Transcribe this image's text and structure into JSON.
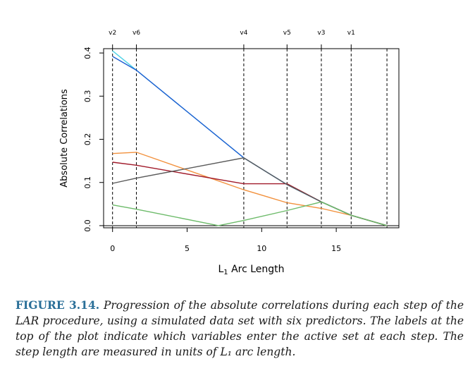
{
  "chart_data": {
    "type": "line",
    "xlabel_prefix": "L",
    "xlabel_sub": "1",
    "xlabel_suffix": " Arc Length",
    "ylabel": "Absolute Correlations",
    "xlim": [
      -0.6,
      19.2
    ],
    "ylim": [
      -0.005,
      0.41
    ],
    "xticks": [
      0,
      5,
      10,
      15
    ],
    "xtick_labels": [
      "0",
      "5",
      "10",
      "15"
    ],
    "yticks": [
      0.0,
      0.1,
      0.2,
      0.3,
      0.4
    ],
    "ytick_labels": [
      "0.0",
      "0.1",
      "0.2",
      "0.3",
      "0.4"
    ],
    "steps": [
      0,
      1.6,
      8.8,
      11.7,
      14.0,
      16.0,
      18.4
    ],
    "step_labels": [
      {
        "x": 0,
        "label": "v2"
      },
      {
        "x": 1.6,
        "label": "v6"
      },
      {
        "x": 8.8,
        "label": "v4"
      },
      {
        "x": 11.7,
        "label": "v5"
      },
      {
        "x": 14.0,
        "label": "v3"
      },
      {
        "x": 16.0,
        "label": "v1"
      }
    ],
    "series": [
      {
        "color": "#4ed3e6",
        "x": [
          0,
          1.6,
          8.8,
          11.7,
          14.0,
          16.0,
          18.4
        ],
        "y": [
          0.405,
          0.36,
          0.157,
          0.095,
          0.055,
          0.024,
          0.0
        ]
      },
      {
        "color": "#1f5fd1",
        "x": [
          0,
          1.6,
          8.8,
          11.7,
          14.0,
          16.0,
          18.4
        ],
        "y": [
          0.392,
          0.36,
          0.157,
          0.095,
          0.055,
          0.024,
          0.0
        ]
      },
      {
        "color": "#f2913d",
        "x": [
          0,
          1.6,
          8.8,
          11.7,
          14.0,
          16.0,
          18.4
        ],
        "y": [
          0.167,
          0.17,
          0.083,
          0.053,
          0.04,
          0.024,
          0.0
        ]
      },
      {
        "color": "#a11a2a",
        "x": [
          0,
          1.6,
          8.8,
          11.7,
          14.0,
          16.0,
          18.4
        ],
        "y": [
          0.147,
          0.14,
          0.097,
          0.097,
          0.055,
          0.024,
          0.0
        ]
      },
      {
        "color": "#5a5a5a",
        "x": [
          0,
          1.6,
          8.8,
          11.7,
          14.0,
          16.0,
          18.4
        ],
        "y": [
          0.098,
          0.11,
          0.157,
          0.095,
          0.055,
          0.024,
          0.0
        ]
      },
      {
        "color": "#6dbb6a",
        "x": [
          0,
          1.6,
          7.1,
          8.8,
          11.7,
          14.0,
          16.0,
          18.4
        ],
        "y": [
          0.048,
          0.038,
          0.0,
          0.012,
          0.035,
          0.055,
          0.024,
          0.0
        ]
      }
    ],
    "grid": false,
    "legend": "none"
  },
  "caption": {
    "label": "FIGURE 3.14.",
    "text": "Progression of the absolute correlations during each step of the LAR procedure, using a simulated data set with six predictors. The labels at the top of the plot indicate which variables enter the active set at each step. The step length are measured in units of L₁ arc length."
  }
}
